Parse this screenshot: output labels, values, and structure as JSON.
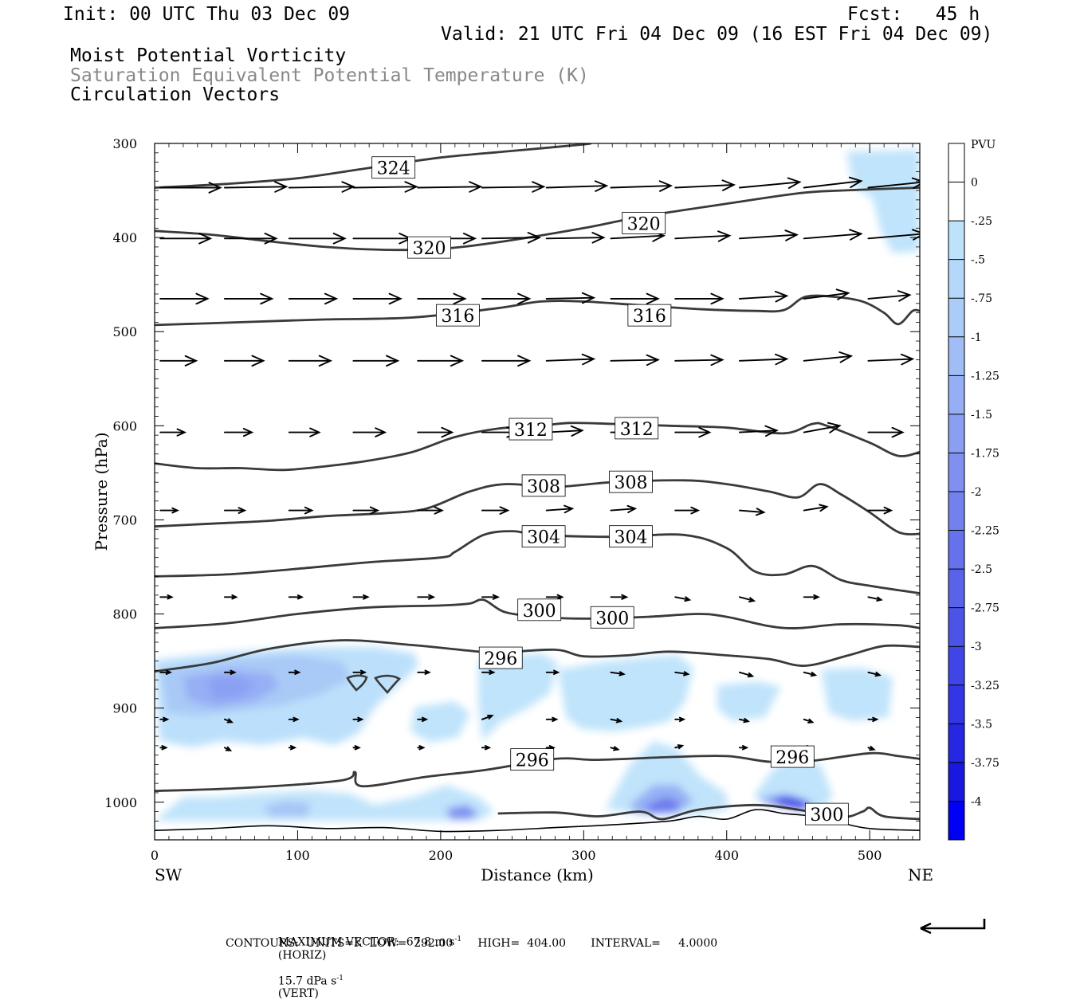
{
  "header": {
    "init": "Init: 00 UTC Thu 03 Dec 09",
    "fcst": "Fcst:   45 h",
    "valid": "Valid: 21 UTC Fri 04 Dec 09 (16 EST Fri 04 Dec 09)",
    "line1": "Moist Potential Vorticity",
    "line2": "Saturation Equivalent Potential Temperature (K)",
    "line3": "Circulation Vectors"
  },
  "chart_data": {
    "type": "cross-section",
    "xlabel": "Distance (km)",
    "ylabel": "Pressure (hPa)",
    "x_left_label": "SW",
    "x_right_label": "NE",
    "xlim": [
      0,
      535
    ],
    "ylim": [
      300,
      1040
    ],
    "x_ticks": [
      0,
      100,
      200,
      300,
      400,
      500
    ],
    "y_ticks": [
      300,
      400,
      500,
      600,
      700,
      800,
      900,
      1000
    ],
    "colorbar": {
      "title": "PVU",
      "labels": [
        "0",
        "-.25",
        "-.5",
        "-.75",
        "-1",
        "-1.25",
        "-1.5",
        "-1.75",
        "-2",
        "-2.25",
        "-2.5",
        "-2.75",
        "-3",
        "-3.25",
        "-3.5",
        "-3.75",
        "-4"
      ],
      "colors": [
        "#ffffff",
        "#ffffff",
        "#bde3fb",
        "#b5d8fa",
        "#abcbf8",
        "#a0bdf6",
        "#95aef4",
        "#8a9ff2",
        "#7f90f0",
        "#7381ee",
        "#6672ec",
        "#5963ea",
        "#4c54e8",
        "#3f45e6",
        "#3236e4",
        "#2527e2",
        "#1818e0",
        "#0000f5"
      ]
    },
    "contours": [
      {
        "label": "324",
        "points": [
          [
            0,
            347
          ],
          [
            50,
            343
          ],
          [
            100,
            337
          ],
          [
            150,
            326
          ],
          [
            200,
            315
          ],
          [
            250,
            308
          ],
          [
            300,
            301
          ],
          [
            303,
            300
          ]
        ],
        "label_at": [
          [
            167,
            326
          ]
        ]
      },
      {
        "label": "320",
        "points": [
          [
            0,
            393
          ],
          [
            40,
            397
          ],
          [
            80,
            404
          ],
          [
            120,
            410
          ],
          [
            160,
            413
          ],
          [
            200,
            412
          ],
          [
            240,
            405
          ],
          [
            300,
            390
          ],
          [
            340,
            378
          ],
          [
            400,
            364
          ],
          [
            450,
            353
          ],
          [
            480,
            350
          ],
          [
            535,
            347
          ]
        ],
        "label_at": [
          [
            192,
            411
          ],
          [
            342,
            385
          ]
        ]
      },
      {
        "label": "316",
        "points": [
          [
            0,
            493
          ],
          [
            60,
            490
          ],
          [
            120,
            487
          ],
          [
            180,
            485
          ],
          [
            240,
            475
          ],
          [
            270,
            468
          ],
          [
            300,
            468
          ],
          [
            340,
            472
          ],
          [
            380,
            476
          ],
          [
            420,
            478
          ],
          [
            440,
            477
          ],
          [
            455,
            463
          ],
          [
            475,
            463
          ],
          [
            495,
            468
          ],
          [
            510,
            480
          ],
          [
            520,
            492
          ],
          [
            530,
            478
          ],
          [
            535,
            478
          ]
        ],
        "label_at": [
          [
            212,
            483
          ],
          [
            346,
            483
          ]
        ]
      },
      {
        "label": "312",
        "points": [
          [
            0,
            640
          ],
          [
            30,
            645
          ],
          [
            60,
            645
          ],
          [
            90,
            647
          ],
          [
            120,
            643
          ],
          [
            150,
            637
          ],
          [
            180,
            628
          ],
          [
            210,
            612
          ],
          [
            240,
            603
          ],
          [
            270,
            600
          ],
          [
            290,
            597
          ],
          [
            320,
            598
          ],
          [
            360,
            600
          ],
          [
            400,
            602
          ],
          [
            440,
            608
          ],
          [
            460,
            598
          ],
          [
            470,
            600
          ],
          [
            500,
            618
          ],
          [
            520,
            632
          ],
          [
            535,
            628
          ]
        ],
        "label_at": [
          [
            263,
            604
          ],
          [
            337,
            603
          ]
        ]
      },
      {
        "label": "308",
        "points": [
          [
            0,
            707
          ],
          [
            40,
            704
          ],
          [
            80,
            701
          ],
          [
            120,
            696
          ],
          [
            160,
            693
          ],
          [
            190,
            688
          ],
          [
            220,
            670
          ],
          [
            245,
            662
          ],
          [
            280,
            665
          ],
          [
            320,
            660
          ],
          [
            370,
            658
          ],
          [
            400,
            662
          ],
          [
            430,
            670
          ],
          [
            450,
            676
          ],
          [
            465,
            662
          ],
          [
            480,
            673
          ],
          [
            500,
            692
          ],
          [
            520,
            713
          ],
          [
            535,
            715
          ]
        ],
        "label_at": [
          [
            272,
            664
          ],
          [
            333,
            660
          ]
        ]
      },
      {
        "label": "304",
        "points": [
          [
            0,
            760
          ],
          [
            50,
            758
          ],
          [
            100,
            752
          ],
          [
            150,
            745
          ],
          [
            200,
            740
          ],
          [
            210,
            734
          ],
          [
            230,
            716
          ],
          [
            250,
            712
          ],
          [
            270,
            716
          ],
          [
            320,
            718
          ],
          [
            370,
            716
          ],
          [
            400,
            730
          ],
          [
            420,
            755
          ],
          [
            440,
            758
          ],
          [
            460,
            749
          ],
          [
            480,
            764
          ],
          [
            500,
            770
          ],
          [
            535,
            778
          ]
        ],
        "label_at": [
          [
            272,
            718
          ],
          [
            333,
            718
          ]
        ]
      },
      {
        "label": "300",
        "points": [
          [
            0,
            815
          ],
          [
            50,
            810
          ],
          [
            100,
            800
          ],
          [
            150,
            793
          ],
          [
            200,
            791
          ],
          [
            220,
            789
          ],
          [
            230,
            785
          ],
          [
            245,
            798
          ],
          [
            270,
            803
          ],
          [
            300,
            805
          ],
          [
            345,
            803
          ],
          [
            380,
            800
          ],
          [
            400,
            803
          ],
          [
            430,
            813
          ],
          [
            450,
            815
          ],
          [
            480,
            811
          ],
          [
            520,
            812
          ],
          [
            535,
            815
          ]
        ],
        "label_at": [
          [
            269,
            796
          ],
          [
            320,
            804
          ]
        ]
      },
      {
        "label": "296",
        "points": [
          [
            0,
            861
          ],
          [
            40,
            852
          ],
          [
            80,
            837
          ],
          [
            130,
            828
          ],
          [
            180,
            833
          ],
          [
            220,
            839
          ],
          [
            240,
            841
          ],
          [
            280,
            838
          ],
          [
            300,
            845
          ],
          [
            330,
            844
          ],
          [
            360,
            840
          ],
          [
            400,
            844
          ],
          [
            430,
            848
          ],
          [
            455,
            855
          ],
          [
            485,
            844
          ],
          [
            510,
            834
          ],
          [
            535,
            835
          ]
        ],
        "label_at": [
          [
            242,
            847
          ]
        ]
      },
      {
        "label": "296",
        "points": [
          [
            0,
            988
          ],
          [
            60,
            985
          ],
          [
            130,
            977
          ],
          [
            140,
            968
          ],
          [
            145,
            983
          ],
          [
            190,
            973
          ],
          [
            230,
            966
          ],
          [
            280,
            954
          ],
          [
            310,
            955
          ],
          [
            360,
            952
          ],
          [
            400,
            951
          ],
          [
            430,
            957
          ],
          [
            460,
            956
          ],
          [
            500,
            948
          ],
          [
            520,
            951
          ],
          [
            535,
            954
          ]
        ],
        "label_at": [
          [
            264,
            955
          ],
          [
            446,
            952
          ]
        ]
      },
      {
        "label": "300",
        "points": [
          [
            240,
            1012
          ],
          [
            280,
            1011
          ],
          [
            310,
            1015
          ],
          [
            340,
            1010
          ],
          [
            355,
            1018
          ],
          [
            380,
            1008
          ],
          [
            420,
            1003
          ],
          [
            450,
            1008
          ],
          [
            480,
            1016
          ],
          [
            495,
            1010
          ],
          [
            500,
            1006
          ],
          [
            510,
            1015
          ],
          [
            535,
            1018
          ]
        ],
        "label_at": [
          [
            470,
            1013
          ]
        ]
      }
    ],
    "vectors": {
      "rows_hPa": [
        347,
        401,
        465,
        531,
        607,
        690,
        782,
        862,
        912,
        942
      ],
      "x_km": [
        4,
        49,
        94,
        139,
        184,
        229,
        274,
        319,
        364,
        409,
        454,
        499
      ],
      "u_km": [
        [
          42,
          43,
          45,
          44,
          44,
          43,
          42,
          42,
          41,
          42,
          40,
          39
        ],
        [
          35,
          36,
          39,
          40,
          40,
          40,
          40,
          37,
          38,
          40,
          40,
          39
        ],
        [
          33,
          33,
          33,
          33,
          33,
          33,
          33,
          33,
          33,
          33,
          31,
          29
        ],
        [
          25,
          27,
          29,
          31,
          31,
          33,
          33,
          33,
          33,
          33,
          33,
          31
        ],
        [
          17,
          19,
          21,
          22,
          24,
          25,
          25,
          24,
          24,
          26,
          25,
          24
        ],
        [
          12,
          14,
          16,
          17,
          17,
          18,
          18,
          17,
          16,
          17,
          16,
          16
        ],
        [
          8,
          8,
          9,
          10,
          11,
          11,
          11,
          11,
          10,
          10,
          10,
          9
        ],
        [
          7,
          7,
          7,
          8,
          8,
          8,
          8,
          9,
          9,
          9,
          8,
          8
        ],
        [
          5,
          5,
          6,
          6,
          6,
          7,
          7,
          7,
          6,
          6,
          6,
          6
        ],
        [
          4,
          4,
          4,
          4,
          4,
          5,
          5,
          5,
          5,
          5,
          5,
          4
        ]
      ],
      "v_hPa": [
        [
          0,
          -1,
          -1,
          -1,
          -1,
          -1,
          -2,
          -2,
          -3,
          -6,
          -7,
          -6
        ],
        [
          0,
          0,
          0,
          0,
          0,
          -1,
          -1,
          -3,
          -3,
          -4,
          -5,
          -5
        ],
        [
          0,
          0,
          0,
          0,
          0,
          0,
          -1,
          0,
          0,
          -3,
          -6,
          -4
        ],
        [
          0,
          0,
          0,
          0,
          0,
          0,
          -2,
          -1,
          -1,
          -2,
          -5,
          -2
        ],
        [
          0,
          0,
          0,
          0,
          0,
          0,
          -2,
          0,
          0,
          -2,
          -7,
          0
        ],
        [
          0,
          0,
          0,
          0,
          0,
          0,
          -2,
          -2,
          0,
          2,
          -4,
          0
        ],
        [
          0,
          0,
          0,
          0,
          0,
          0,
          0,
          0,
          3,
          4,
          0,
          3
        ],
        [
          0,
          0,
          0,
          0,
          0,
          0,
          0,
          2,
          2,
          4,
          3,
          3
        ],
        [
          0,
          3,
          0,
          0,
          0,
          -4,
          0,
          2,
          0,
          2,
          3,
          0
        ],
        [
          0,
          3,
          0,
          0,
          0,
          0,
          0,
          2,
          -2,
          0,
          0,
          2
        ]
      ]
    },
    "max_vector": "MAXIMUM VECTOR:  67.8 m s",
    "max_vector_horiz": "(HORIZ)",
    "max_vector_vert_value": "15.7 dPa s",
    "max_vector_vert": "(VERT)",
    "exponent": "-1",
    "contour_info": "CONTOURS:  UNITS=K  LOW=  292.00       HIGH=  404.00       INTERVAL=     4.0000"
  }
}
